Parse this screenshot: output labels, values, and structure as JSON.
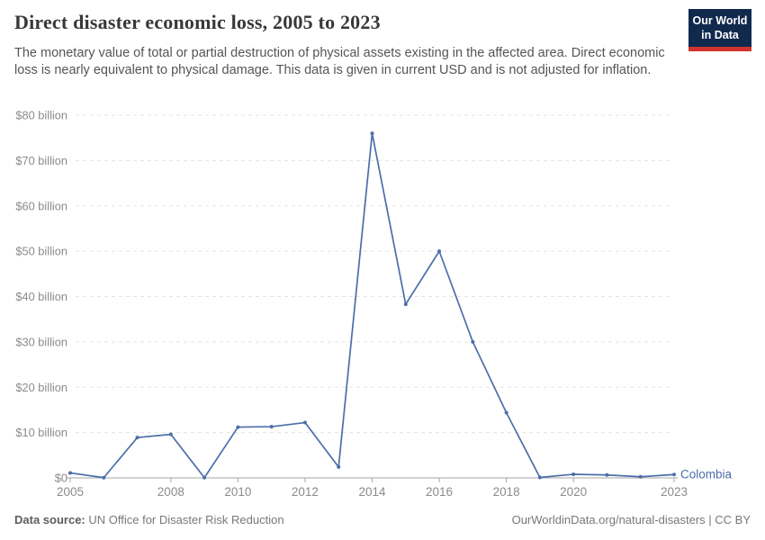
{
  "header": {
    "title": "Direct disaster economic loss, 2005 to 2023",
    "subtitle": "The monetary value of total or partial destruction of physical assets existing in the affected area. Direct economic loss is nearly equivalent to physical damage. This data is given in current USD and is not adjusted for inflation.",
    "logo": {
      "line1": "Our World",
      "line2": "in Data",
      "bg": "#12294e",
      "accent": "#d0342c"
    }
  },
  "chart_data": {
    "type": "line",
    "title": "Direct disaster economic loss, 2005 to 2023",
    "xlabel": "",
    "ylabel": "",
    "x": [
      2005,
      2006,
      2007,
      2008,
      2009,
      2010,
      2011,
      2012,
      2013,
      2014,
      2015,
      2016,
      2017,
      2018,
      2019,
      2020,
      2021,
      2022,
      2023
    ],
    "series": [
      {
        "name": "Colombia",
        "color": "#4c6ea8",
        "values": [
          1.1,
          0.05,
          8.9,
          9.6,
          0.05,
          11.2,
          11.3,
          12.2,
          2.4,
          76,
          38.3,
          50,
          30,
          14.4,
          0.1,
          0.8,
          0.65,
          0.25,
          0.75
        ]
      }
    ],
    "unit": "current USD",
    "ylim": [
      0,
      80
    ],
    "yticks": [
      0,
      10,
      20,
      30,
      40,
      50,
      60,
      70,
      80
    ],
    "ytick_labels": [
      "$0",
      "$10 billion",
      "$20 billion",
      "$30 billion",
      "$40 billion",
      "$50 billion",
      "$60 billion",
      "$70 billion",
      "$80 billion"
    ],
    "xticks": [
      2005,
      2008,
      2010,
      2012,
      2014,
      2016,
      2018,
      2020,
      2023
    ],
    "grid": "horizontal dashed",
    "legend_position": "end-of-line label",
    "style": {
      "grid_color": "#e3e3e3",
      "axis_color": "#a6a6a6",
      "tick_label_color": "#8b8b8b"
    }
  },
  "footer": {
    "source_label": "Data source:",
    "source": " UN Office for Disaster Risk Reduction",
    "link": "OurWorldinData.org/natural-disasters | CC BY"
  }
}
